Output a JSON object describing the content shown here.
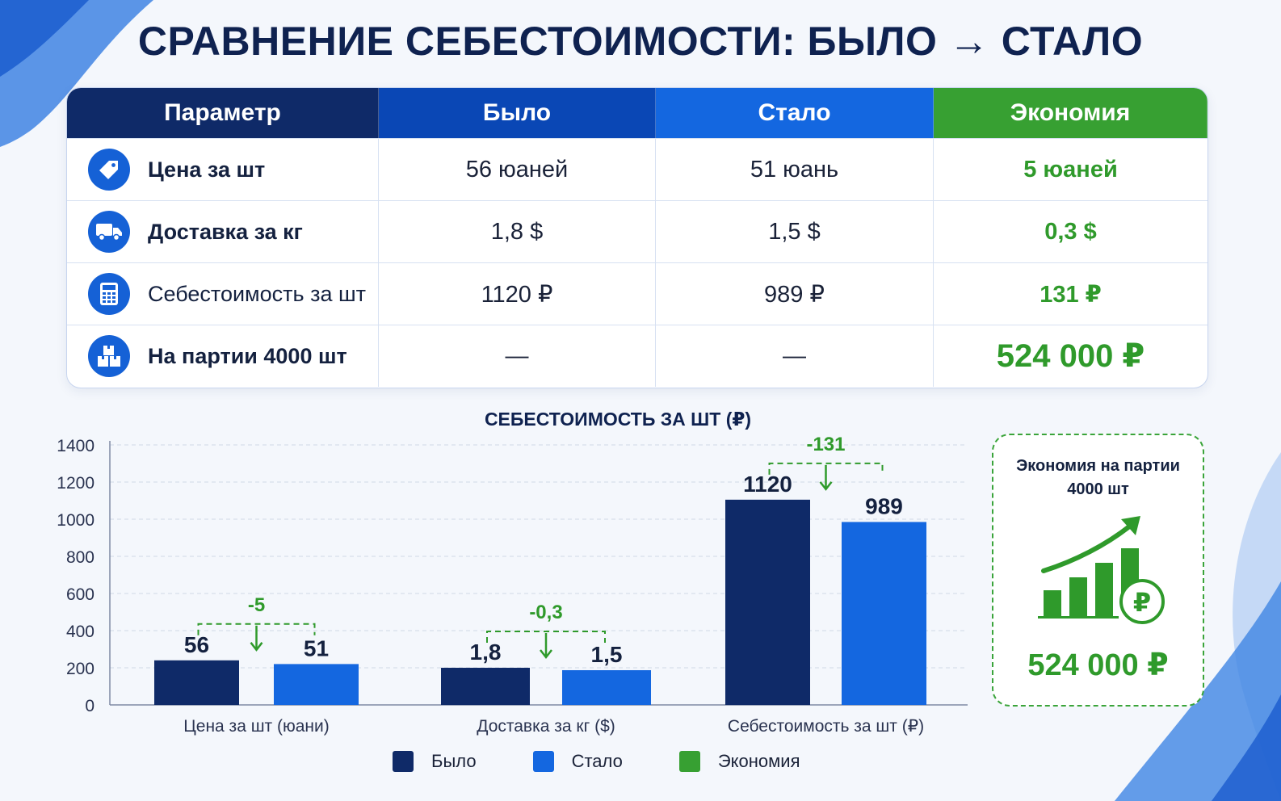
{
  "title": "СРАВНЕНИЕ СЕБЕСТОИМОСТИ: БЫЛО → СТАЛО",
  "colors": {
    "navy": "#0f2a68",
    "blue": "#1467e0",
    "green": "#37a032",
    "green_text": "#2f9a2b"
  },
  "table": {
    "headers": [
      "Параметр",
      "Было",
      "Стало",
      "Экономия"
    ],
    "rows": [
      {
        "icon": "price-tag-icon",
        "param": "Цена за шт",
        "was": "56 юаней",
        "now": "51 юань",
        "saving": "5 юаней"
      },
      {
        "icon": "truck-icon",
        "param": "Доставка за кг",
        "was": "1,8 $",
        "now": "1,5 $",
        "saving": "0,3 $"
      },
      {
        "icon": "calculator-icon",
        "param": "Себестоимость за шт",
        "was": "1120 ₽",
        "now": "989 ₽",
        "saving": "131 ₽"
      },
      {
        "icon": "boxes-icon",
        "param": "На партии 4000 шт",
        "was": "—",
        "now": "—",
        "saving": "524 000 ₽"
      }
    ]
  },
  "chart_data": {
    "type": "bar",
    "title": "СЕБЕСТОИМОСТЬ ЗА ШТ (₽)",
    "categories": [
      "Цена за шт (юани)",
      "Доставка за кг ($)",
      "Себестоимость за шт (₽)"
    ],
    "series": [
      {
        "name": "Было",
        "values": [
          240,
          200,
          1105
        ],
        "labels": [
          "56",
          "1,8",
          "1120"
        ]
      },
      {
        "name": "Стало",
        "values": [
          220,
          187,
          985
        ],
        "labels": [
          "51",
          "1,5",
          "989"
        ]
      }
    ],
    "differences": [
      "-5",
      "-0,3",
      "-131"
    ],
    "legend": [
      "Было",
      "Стало",
      "Экономия"
    ],
    "legend_position": "bottom",
    "ylim": [
      0,
      1400
    ],
    "yticks": [
      0,
      200,
      400,
      600,
      800,
      1000,
      1200,
      1400
    ],
    "grid": true
  },
  "savings_card": {
    "title_line1": "Экономия на партии",
    "title_line2": "4000 шт",
    "value": "524 000 ₽",
    "icon": "growth-chart-ruble-icon"
  }
}
